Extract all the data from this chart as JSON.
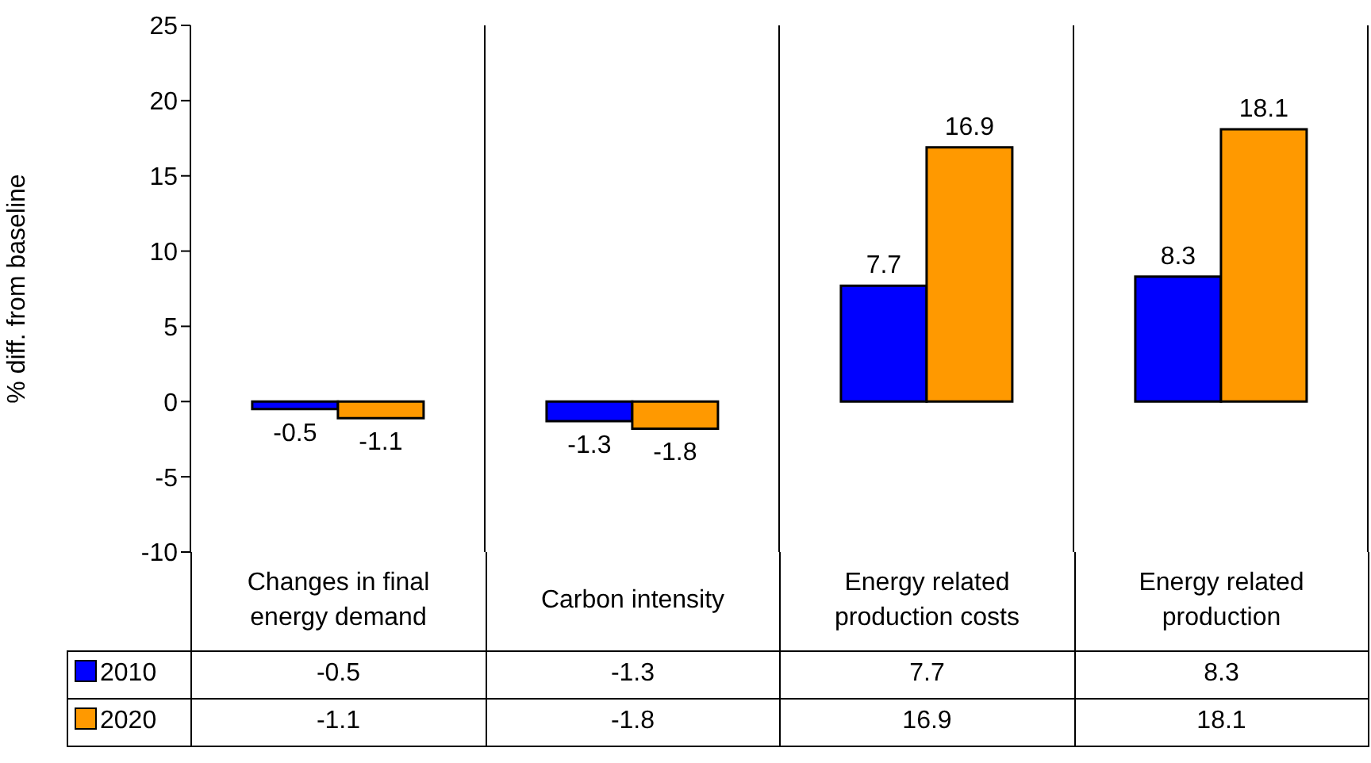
{
  "chart_data": {
    "type": "bar",
    "ylabel": "% diff. from baseline",
    "categories": [
      "Changes in final energy demand",
      "Carbon intensity",
      "Energy related production costs",
      "Energy related production"
    ],
    "series": [
      {
        "name": "2010",
        "color": "#0000ff",
        "values": [
          -0.5,
          -1.3,
          7.7,
          8.3
        ],
        "value_labels": [
          "-0.5",
          "-1.3",
          "7.7",
          "8.3"
        ]
      },
      {
        "name": "2020",
        "color": "#ff9900",
        "values": [
          -1.1,
          -1.8,
          16.9,
          18.1
        ],
        "value_labels": [
          "-1.1",
          "-1.8",
          "16.9",
          "18.1"
        ]
      }
    ],
    "ylim": [
      -10,
      25
    ],
    "yticks": [
      -10,
      -5,
      0,
      5,
      10,
      15,
      20,
      25
    ],
    "grid": "x",
    "legend": "bottom",
    "data_labels": true,
    "annotations": [
      "-0.5",
      "-1.3",
      "7.7",
      "8.3",
      "-1.1",
      "-1.8",
      "16.9",
      "18.1"
    ]
  }
}
